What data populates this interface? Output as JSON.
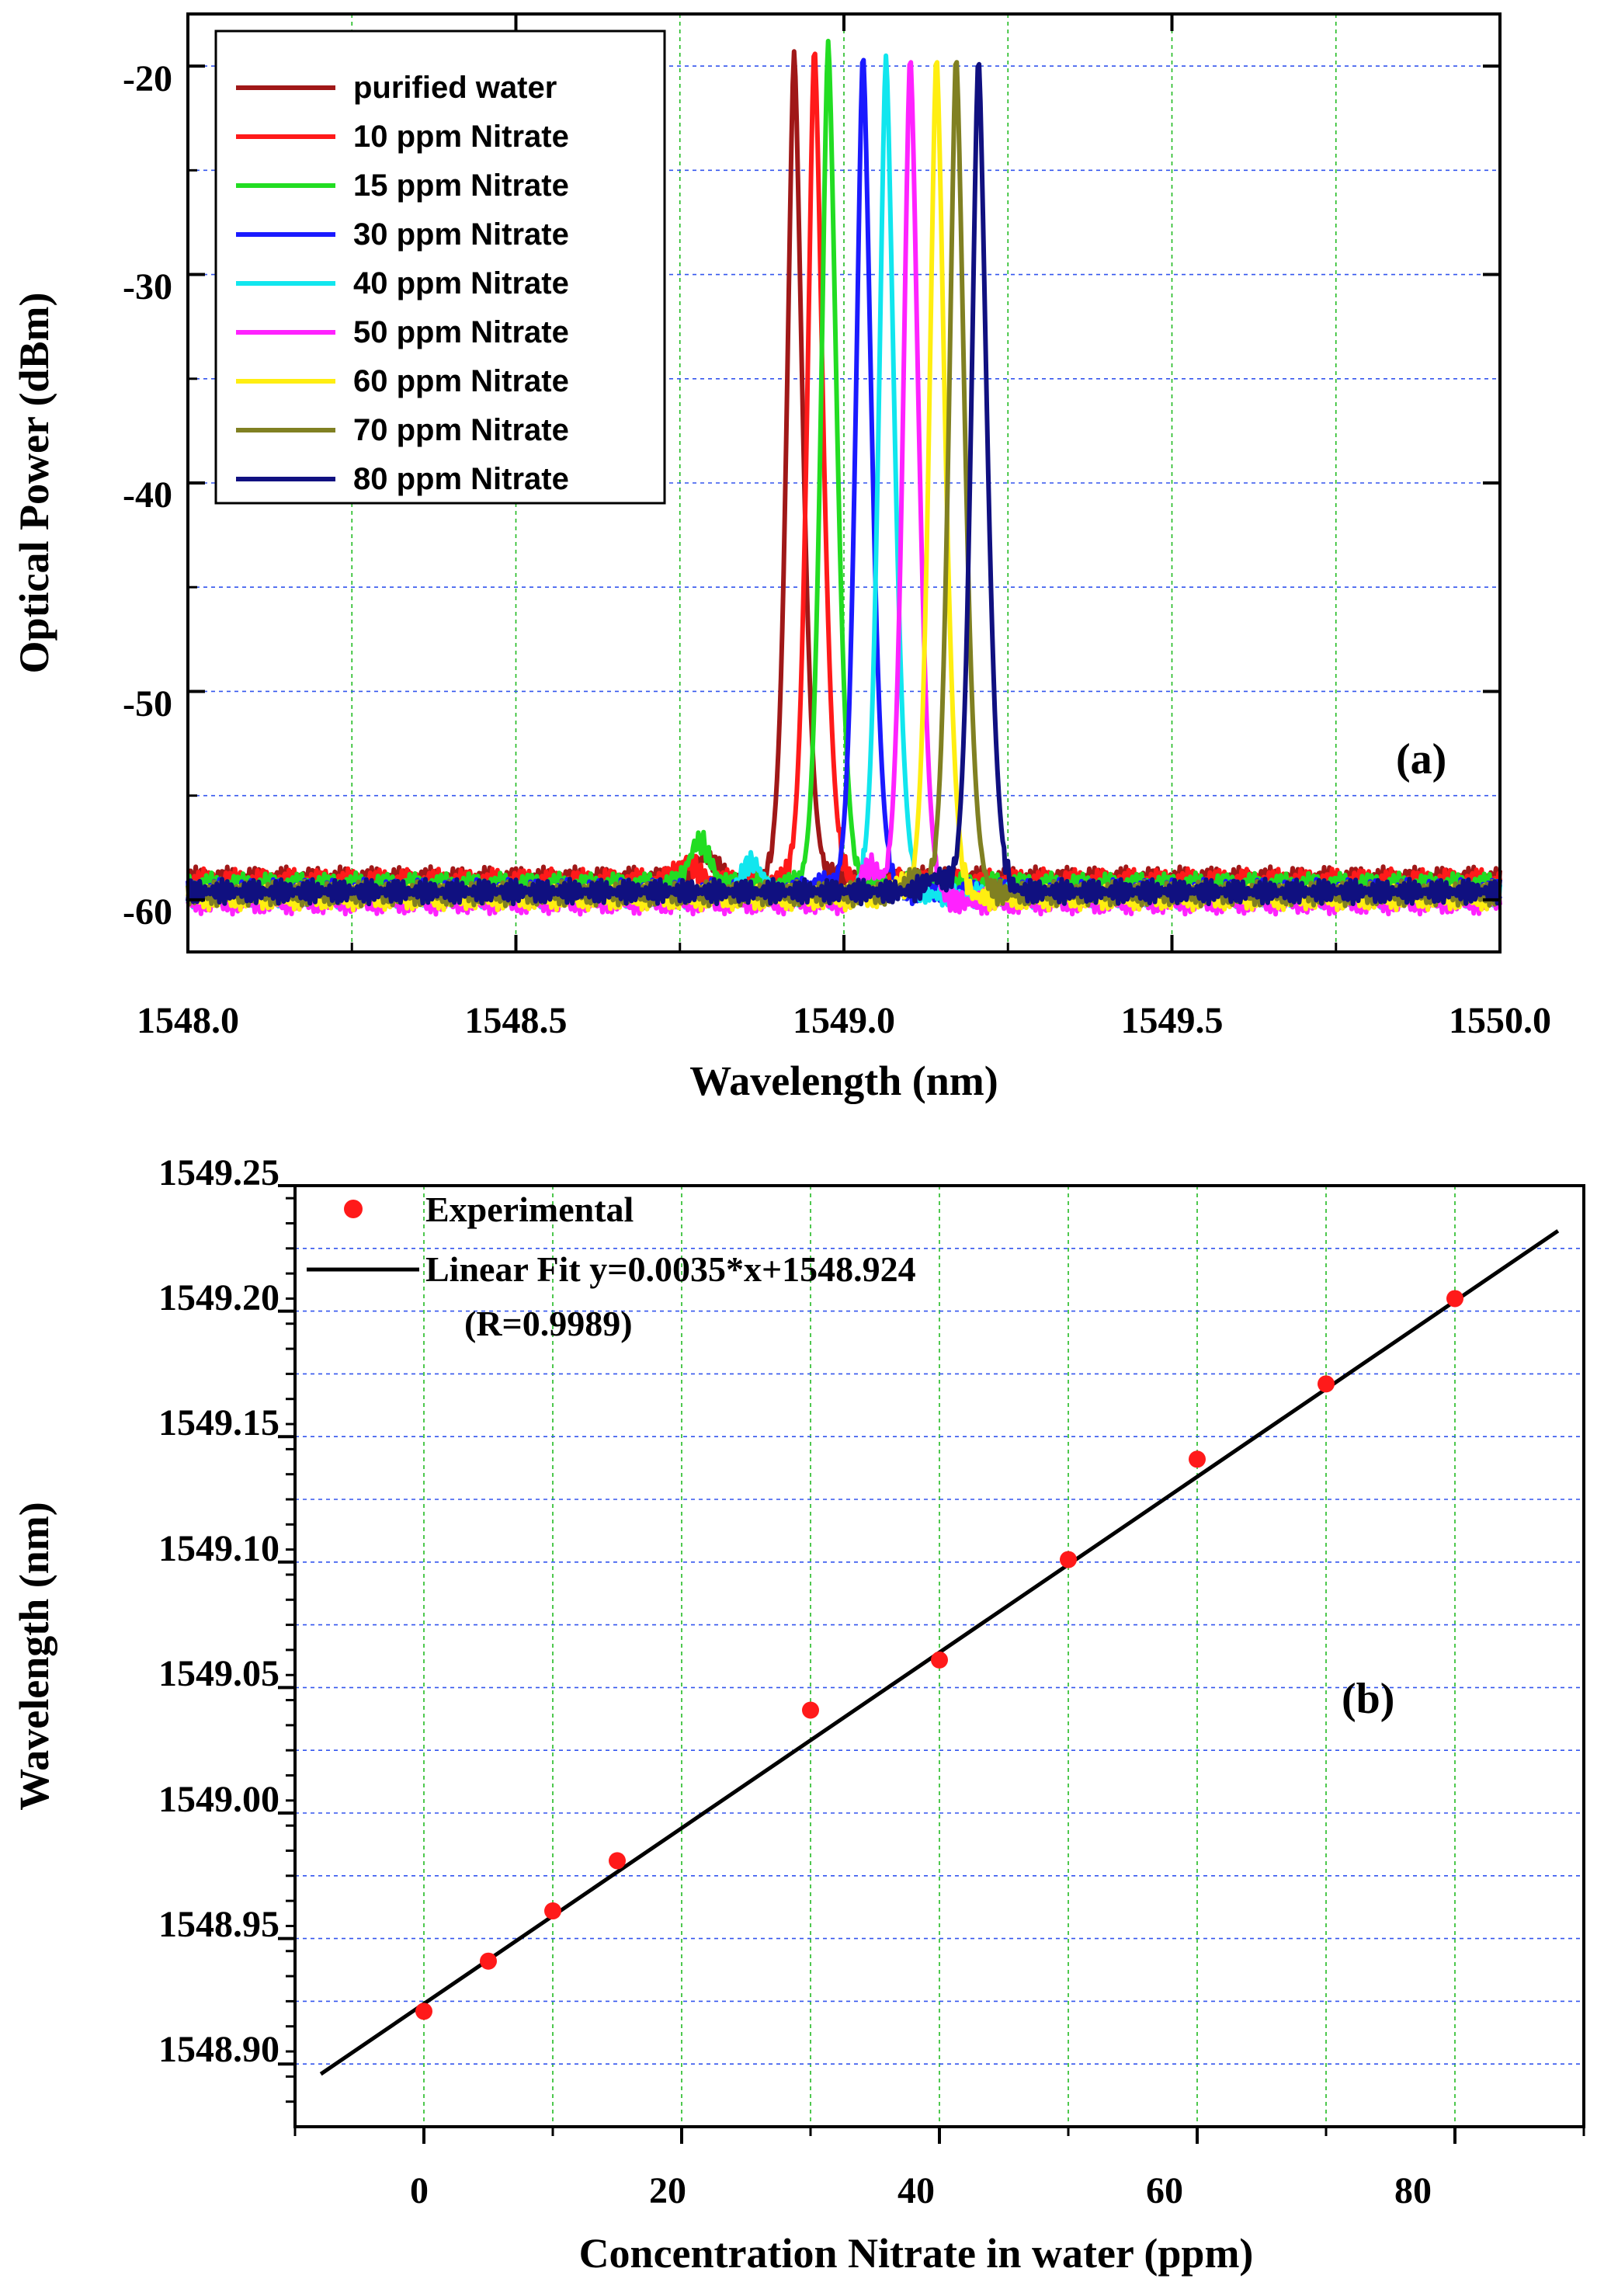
{
  "colors": {
    "grid_vertical": "#22bb22",
    "grid_horizontal": "#3355ee",
    "marker": "#ff1a1a",
    "fit_line": "#000000"
  },
  "chart_data": [
    {
      "type": "line",
      "panel_label": "(a)",
      "xlabel": "Wavelength (nm)",
      "ylabel": "Optical Power (dBm)",
      "xlim": [
        1548.0,
        1550.0
      ],
      "ylim": [
        -62.5,
        -17.5
      ],
      "xticks": [
        1548.0,
        1548.5,
        1549.0,
        1549.5,
        1550.0
      ],
      "xtick_labels": [
        "1548.0",
        "1548.5",
        "1549.0",
        "1549.5",
        "1550.0"
      ],
      "yticks": [
        -20,
        -30,
        -40,
        -50,
        -60
      ],
      "ytick_labels": [
        "-20",
        "-30",
        "-40",
        "-50",
        "-60"
      ],
      "grid": true,
      "legend_position": "top-left",
      "series": [
        {
          "name": "purified water",
          "color": "#a01818",
          "peak_wavelength": 1548.924,
          "peak_power": -19.3,
          "baseline": -59.0,
          "side_bump": [
            1548.79,
            -58.0
          ]
        },
        {
          "name": "10 ppm Nitrate",
          "color": "#ff1a1a",
          "peak_wavelength": 1548.955,
          "peak_power": -19.0,
          "baseline": -59.1,
          "side_bump": [
            1548.76,
            -58.2
          ]
        },
        {
          "name": "15 ppm Nitrate",
          "color": "#22dd22",
          "peak_wavelength": 1548.976,
          "peak_power": -18.8,
          "baseline": -59.3,
          "side_bump": [
            1548.78,
            -57.2
          ]
        },
        {
          "name": "30 ppm Nitrate",
          "color": "#1a1aff",
          "peak_wavelength": 1549.029,
          "peak_power": -19.3,
          "baseline": -59.6,
          "side_bump": [
            1548.96,
            -59.2
          ]
        },
        {
          "name": "40 ppm Nitrate",
          "color": "#11e6ee",
          "peak_wavelength": 1549.064,
          "peak_power": -19.5,
          "baseline": -59.8,
          "side_bump": [
            1548.86,
            -58.2
          ]
        },
        {
          "name": "50 ppm Nitrate",
          "color": "#ff22ff",
          "peak_wavelength": 1549.101,
          "peak_power": -19.4,
          "baseline": -60.1,
          "side_bump": [
            1549.04,
            -58.4
          ]
        },
        {
          "name": "60 ppm Nitrate",
          "color": "#ffee11",
          "peak_wavelength": 1549.141,
          "peak_power": -19.4,
          "baseline": -59.9,
          "side_bump": [
            1549.08,
            -59.3
          ]
        },
        {
          "name": "70 ppm Nitrate",
          "color": "#808022",
          "peak_wavelength": 1549.171,
          "peak_power": -19.4,
          "baseline": -59.7,
          "side_bump": [
            1549.11,
            -59.0
          ]
        },
        {
          "name": "80 ppm Nitrate",
          "color": "#101080",
          "peak_wavelength": 1549.205,
          "peak_power": -19.5,
          "baseline": -59.6,
          "side_bump": [
            1549.14,
            -58.9
          ]
        }
      ]
    },
    {
      "type": "scatter",
      "panel_label": "(b)",
      "xlabel": "Concentration Nitrate in water (ppm)",
      "ylabel": "Wavelength (nm)",
      "xlim": [
        -10,
        90
      ],
      "ylim": [
        1548.875,
        1549.25
      ],
      "xticks": [
        0,
        20,
        40,
        60,
        80
      ],
      "xtick_labels": [
        "0",
        "20",
        "40",
        "60",
        "80"
      ],
      "yticks": [
        1548.9,
        1548.95,
        1549.0,
        1549.05,
        1549.1,
        1549.15,
        1549.2,
        1549.25
      ],
      "ytick_labels": [
        "1548.90",
        "1548.95",
        "1549.00",
        "1549.05",
        "1549.10",
        "1549.15",
        "1549.20",
        "1549.25"
      ],
      "grid": true,
      "legend_position": "top-left",
      "legend": [
        "Experimental",
        "Linear Fit y=0.0035*x+1548.924",
        "(R=0.9989)"
      ],
      "series": [
        {
          "name": "Experimental",
          "x": [
            0,
            5,
            10,
            15,
            30,
            40,
            50,
            60,
            70,
            80
          ],
          "y": [
            1548.921,
            1548.941,
            1548.961,
            1548.981,
            1549.041,
            1549.061,
            1549.101,
            1549.141,
            1549.171,
            1549.205
          ]
        },
        {
          "name": "Linear Fit",
          "slope": 0.0035,
          "intercept": 1548.924,
          "x_range": [
            -8,
            88
          ]
        }
      ]
    }
  ]
}
